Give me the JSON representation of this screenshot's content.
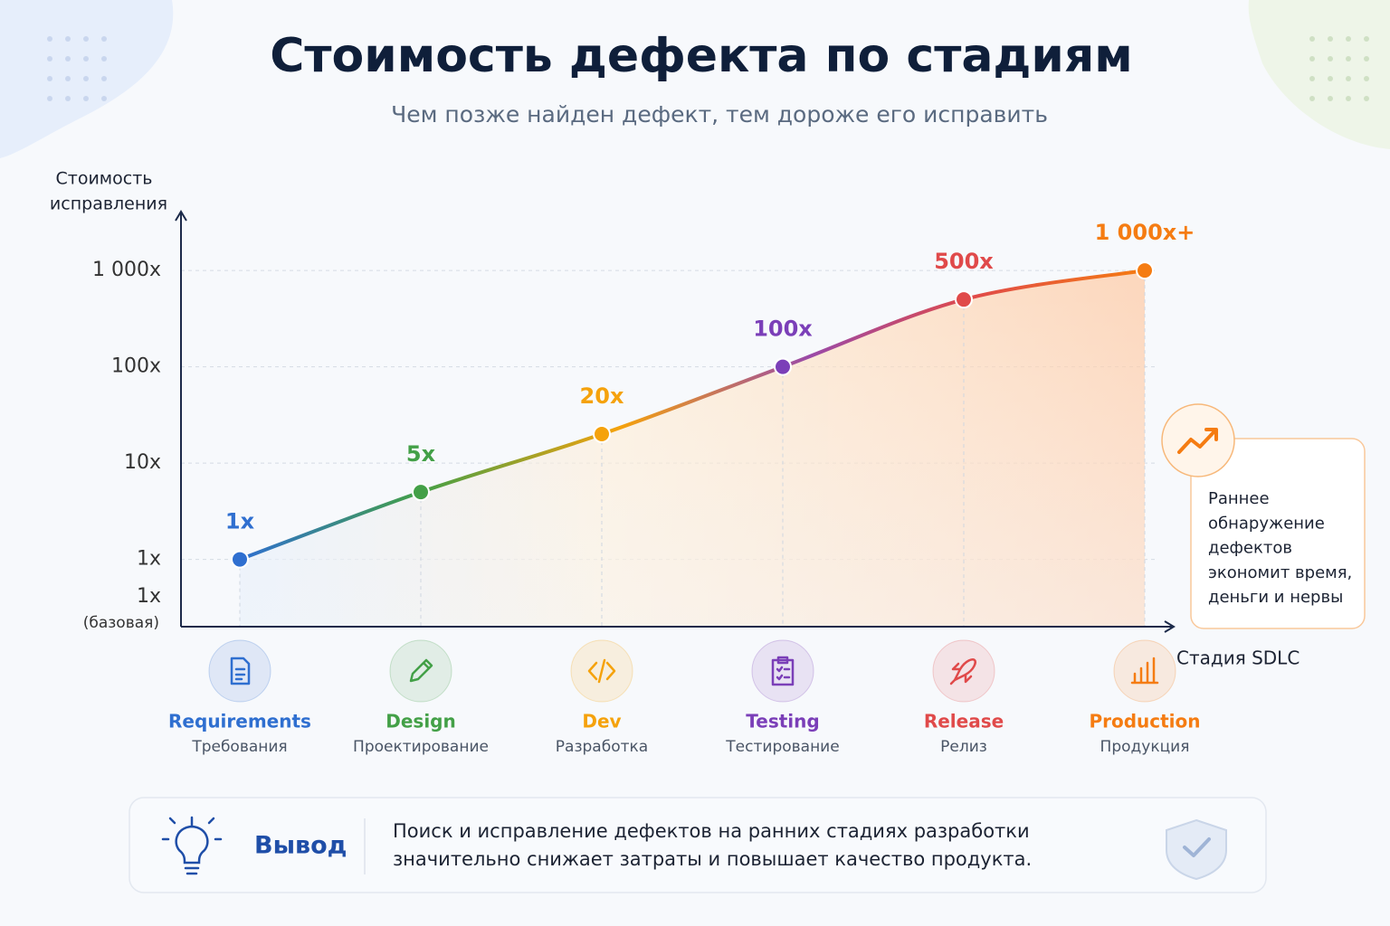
{
  "chart_data": {
    "type": "line",
    "title": "Стоимость дефекта по стадиям",
    "subtitle": "Чем позже найден дефект, тем дороже его исправить",
    "y_label": [
      "Стоимость",
      "исправления"
    ],
    "y_base_label": [
      "1x",
      "(базовая)"
    ],
    "x_label": "Стадия SDLC",
    "categories": [
      "Requirements",
      "Design",
      "Dev",
      "Testing",
      "Release",
      "Production"
    ],
    "category_subtitles": [
      "Требования",
      "Проектирование",
      "Разработка",
      "Тестирование",
      "Релиз",
      "Продукция"
    ],
    "values": [
      1,
      5,
      20,
      100,
      500,
      1000
    ],
    "value_labels": [
      "1x",
      "5x",
      "20x",
      "100x",
      "500x",
      "1 000x+"
    ],
    "colors": [
      "#2f6fd0",
      "#43a047",
      "#f5a20c",
      "#7b3fb8",
      "#e04a4a",
      "#f57c12"
    ],
    "log_scale": true,
    "ylim": [
      0.2,
      4000
    ],
    "yticks": [
      {
        "value": 1,
        "label": "1x"
      },
      {
        "value": 10,
        "label": "10x"
      },
      {
        "value": 100,
        "label": "100x"
      },
      {
        "value": 1000,
        "label": "1 000x"
      }
    ],
    "grid": true,
    "callout": [
      "Раннее",
      "обнаружение",
      "дефектов",
      "экономит время,",
      "деньги и нервы"
    ],
    "conclusion_title": "Вывод",
    "conclusion": [
      "Поиск и исправление дефектов на ранних стадиях разработки",
      "значительно снижает затраты и повышает качество продукта."
    ]
  }
}
